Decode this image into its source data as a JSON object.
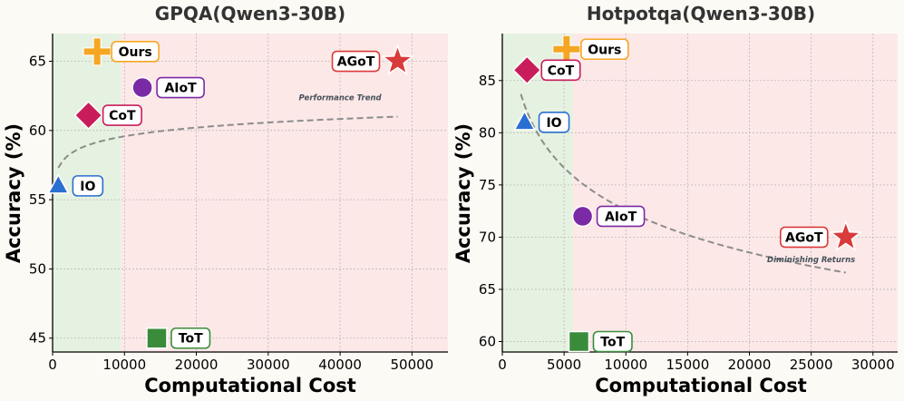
{
  "chart_data": [
    {
      "type": "scatter",
      "title": "GPQA(Qwen3-30B)",
      "xlabel": "Computational Cost",
      "ylabel": "Accuracy (%)",
      "xlim": [
        0,
        55000
      ],
      "ylim": [
        44,
        67
      ],
      "xticks": [
        0,
        10000,
        20000,
        30000,
        40000,
        50000
      ],
      "yticks": [
        45,
        50,
        55,
        60,
        65
      ],
      "xtick_labels": [
        "0",
        "10000",
        "20000",
        "30000",
        "40000",
        "50000"
      ],
      "ytick_labels": [
        "45",
        "50",
        "55",
        "60",
        "65"
      ],
      "grid": true,
      "regions": [
        {
          "from": 0,
          "to": 9500,
          "color": "#e6f2e1"
        },
        {
          "from": 9500,
          "to": 55000,
          "color": "#fde8e8"
        }
      ],
      "trend": {
        "kind": "log",
        "x_start": 800,
        "x_end": 48000,
        "annotation": "Performance Trend",
        "annotation_at": [
          40000,
          62.2
        ]
      },
      "points": [
        {
          "label": "Ours",
          "x": 6200,
          "y": 65.7,
          "marker": "plus",
          "color": "#f5a623"
        },
        {
          "label": "AGoT",
          "x": 48000,
          "y": 65.0,
          "marker": "star",
          "color": "#d93a3a",
          "label_side": "left"
        },
        {
          "label": "AIoT",
          "x": 12500,
          "y": 63.1,
          "marker": "circle",
          "color": "#7b2aa5"
        },
        {
          "label": "CoT",
          "x": 5000,
          "y": 61.1,
          "marker": "diamond",
          "color": "#c81d5a"
        },
        {
          "label": "IO",
          "x": 800,
          "y": 56.0,
          "marker": "triangle",
          "color": "#2a6fd1"
        },
        {
          "label": "ToT",
          "x": 14500,
          "y": 45.0,
          "marker": "square",
          "color": "#3a8c3a"
        }
      ]
    },
    {
      "type": "scatter",
      "title": "Hotpotqa(Qwen3-30B)",
      "xlabel": "Computational Cost",
      "ylabel": "Accuracy (%)",
      "xlim": [
        0,
        32000
      ],
      "ylim": [
        59,
        89.5
      ],
      "xticks": [
        0,
        5000,
        10000,
        15000,
        20000,
        25000,
        30000
      ],
      "yticks": [
        60,
        65,
        70,
        75,
        80,
        85
      ],
      "xtick_labels": [
        "0",
        "5000",
        "10000",
        "15000",
        "20000",
        "25000",
        "30000"
      ],
      "ytick_labels": [
        "60",
        "65",
        "70",
        "75",
        "80",
        "85"
      ],
      "grid": true,
      "regions": [
        {
          "from": 0,
          "to": 5700,
          "color": "#e6f2e1"
        },
        {
          "from": 5700,
          "to": 32000,
          "color": "#fde8e8"
        }
      ],
      "trend": {
        "kind": "log",
        "x_start": 1500,
        "x_end": 27800,
        "annotation": "Diminishing Returns",
        "annotation_at": [
          25000,
          67.6
        ]
      },
      "points": [
        {
          "label": "Ours",
          "x": 5200,
          "y": 88.0,
          "marker": "plus",
          "color": "#f5a623"
        },
        {
          "label": "CoT",
          "x": 2000,
          "y": 86.0,
          "marker": "diamond",
          "color": "#c81d5a"
        },
        {
          "label": "IO",
          "x": 1800,
          "y": 81.0,
          "marker": "triangle",
          "color": "#2a6fd1"
        },
        {
          "label": "AIoT",
          "x": 6500,
          "y": 72.0,
          "marker": "circle",
          "color": "#7b2aa5"
        },
        {
          "label": "AGoT",
          "x": 27800,
          "y": 70.0,
          "marker": "star",
          "color": "#d93a3a",
          "label_side": "left"
        },
        {
          "label": "ToT",
          "x": 6200,
          "y": 60.0,
          "marker": "square",
          "color": "#3a8c3a"
        }
      ]
    }
  ]
}
